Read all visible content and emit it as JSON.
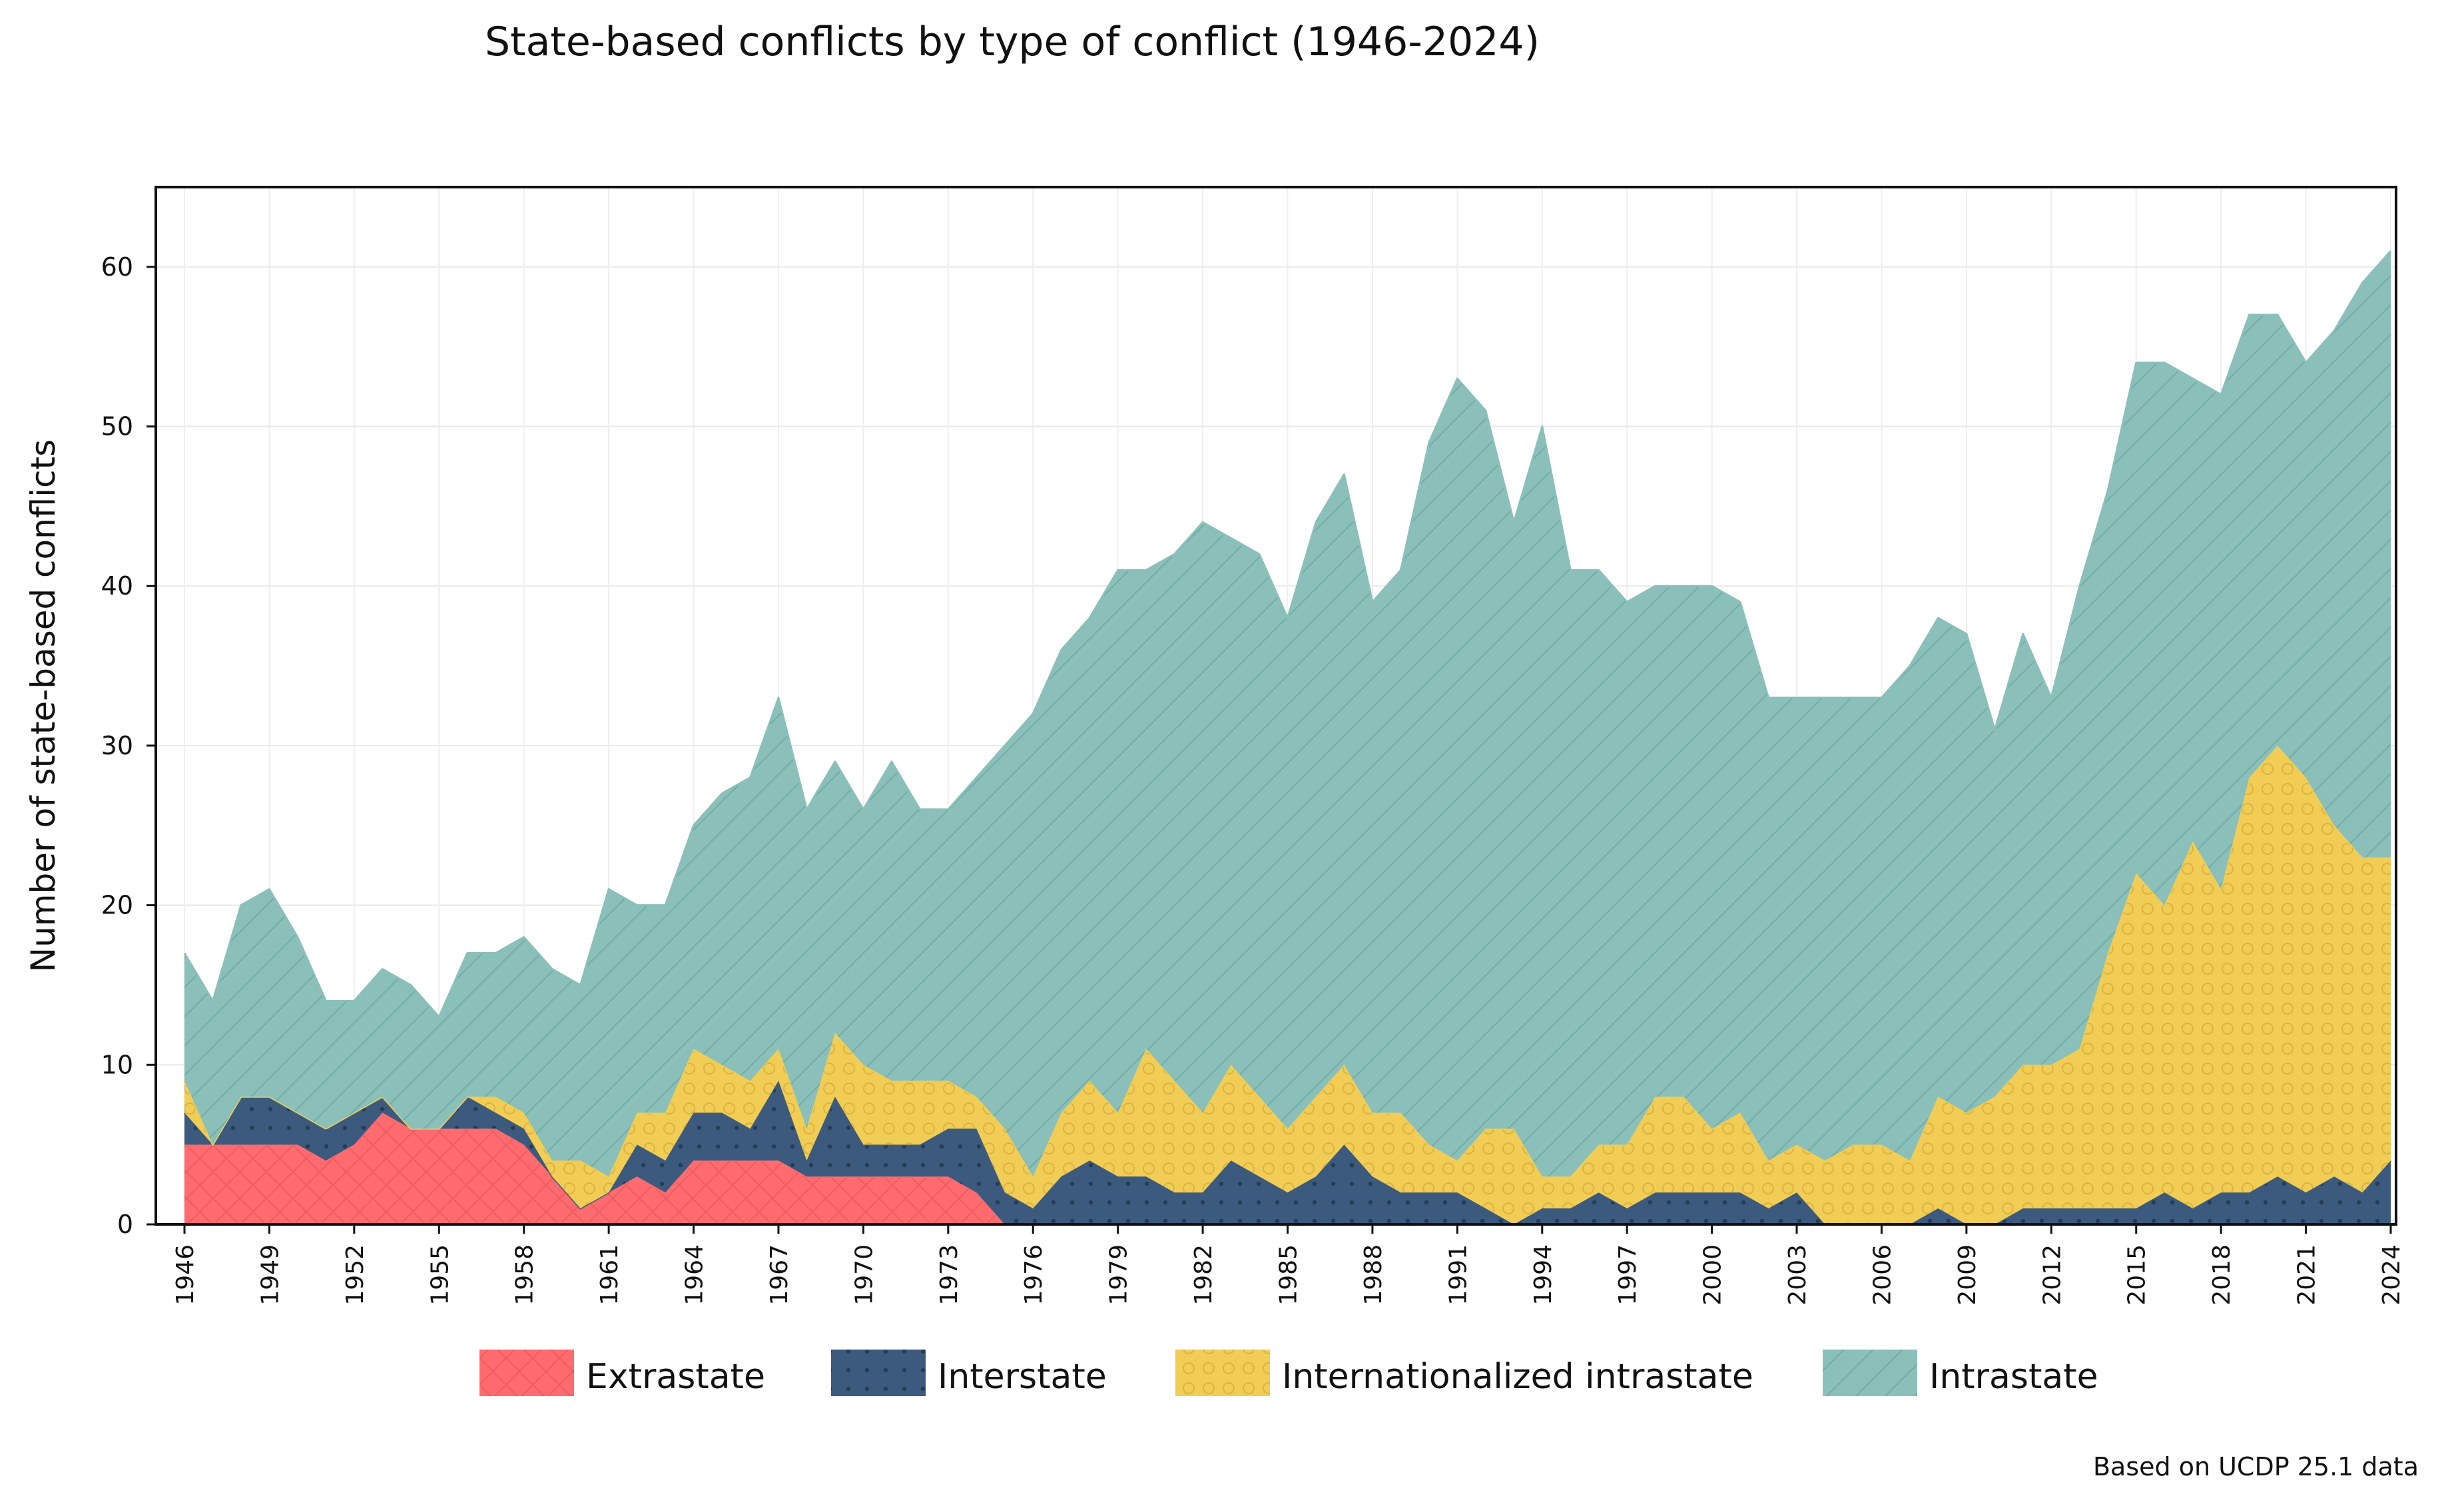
{
  "chart_data": {
    "type": "area",
    "stacked": true,
    "title": "State-based conflicts by type of conflict (1946-2024)",
    "xlabel": "",
    "ylabel": "Number of state-based conflicts",
    "note": "Based on UCDP 25.1 data",
    "xlim": [
      1946,
      2024
    ],
    "ylim": [
      0,
      65
    ],
    "yticks": [
      0,
      10,
      20,
      30,
      40,
      50,
      60
    ],
    "xticks": [
      1946,
      1949,
      1952,
      1955,
      1958,
      1961,
      1964,
      1967,
      1970,
      1973,
      1976,
      1979,
      1982,
      1985,
      1988,
      1991,
      1994,
      1997,
      2000,
      2003,
      2006,
      2009,
      2012,
      2015,
      2018,
      2021,
      2024
    ],
    "grid": true,
    "legend_position": "bottom",
    "x": [
      1946,
      1947,
      1948,
      1949,
      1950,
      1951,
      1952,
      1953,
      1954,
      1955,
      1956,
      1957,
      1958,
      1959,
      1960,
      1961,
      1962,
      1963,
      1964,
      1965,
      1966,
      1967,
      1968,
      1969,
      1970,
      1971,
      1972,
      1973,
      1974,
      1975,
      1976,
      1977,
      1978,
      1979,
      1980,
      1981,
      1982,
      1983,
      1984,
      1985,
      1986,
      1987,
      1988,
      1989,
      1990,
      1991,
      1992,
      1993,
      1994,
      1995,
      1996,
      1997,
      1998,
      1999,
      2000,
      2001,
      2002,
      2003,
      2004,
      2005,
      2006,
      2007,
      2008,
      2009,
      2010,
      2011,
      2012,
      2013,
      2014,
      2015,
      2016,
      2017,
      2018,
      2019,
      2020,
      2021,
      2022,
      2023,
      2024
    ],
    "series": [
      {
        "name": "Extrastate",
        "color": "#ff6b6e",
        "pattern": "crosshatch",
        "values": [
          5,
          5,
          5,
          5,
          5,
          4,
          5,
          7,
          6,
          6,
          6,
          6,
          5,
          3,
          1,
          2,
          3,
          2,
          4,
          4,
          4,
          4,
          3,
          3,
          3,
          3,
          3,
          3,
          2,
          0,
          0,
          0,
          0,
          0,
          0,
          0,
          0,
          0,
          0,
          0,
          0,
          0,
          0,
          0,
          0,
          0,
          0,
          0,
          0,
          0,
          0,
          0,
          0,
          0,
          0,
          0,
          0,
          0,
          0,
          0,
          0,
          0,
          0,
          0,
          0,
          0,
          0,
          0,
          0,
          0,
          0,
          0,
          0,
          0,
          0,
          0,
          0,
          0,
          0
        ]
      },
      {
        "name": "Interstate",
        "color": "#3c5a7d",
        "pattern": "dots",
        "values": [
          2,
          0,
          3,
          3,
          2,
          2,
          2,
          1,
          0,
          0,
          2,
          1,
          1,
          0,
          0,
          0,
          2,
          2,
          3,
          3,
          2,
          5,
          1,
          5,
          2,
          2,
          2,
          3,
          4,
          2,
          1,
          3,
          4,
          3,
          3,
          2,
          2,
          4,
          3,
          2,
          3,
          5,
          3,
          2,
          2,
          2,
          1,
          0,
          1,
          1,
          2,
          1,
          2,
          2,
          2,
          2,
          1,
          2,
          0,
          0,
          0,
          0,
          1,
          0,
          0,
          1,
          1,
          1,
          1,
          1,
          2,
          1,
          2,
          2,
          3,
          2,
          3,
          2,
          4
        ]
      },
      {
        "name": "Internationalized intrastate",
        "color": "#f2cd55",
        "pattern": "circles",
        "values": [
          2,
          0,
          0,
          0,
          0,
          0,
          0,
          0,
          0,
          0,
          0,
          1,
          1,
          1,
          3,
          1,
          2,
          3,
          4,
          3,
          3,
          2,
          2,
          4,
          5,
          4,
          4,
          3,
          2,
          4,
          2,
          4,
          5,
          4,
          8,
          7,
          5,
          6,
          5,
          4,
          5,
          5,
          4,
          5,
          3,
          2,
          5,
          6,
          2,
          2,
          3,
          4,
          6,
          6,
          4,
          5,
          3,
          3,
          4,
          5,
          5,
          4,
          7,
          7,
          8,
          9,
          9,
          10,
          16,
          21,
          18,
          23,
          19,
          26,
          27,
          26,
          22,
          21,
          19
        ]
      },
      {
        "name": "Intrastate",
        "color": "#8ac0b9",
        "pattern": "diagonal",
        "values": [
          8,
          9,
          12,
          13,
          11,
          8,
          7,
          8,
          9,
          7,
          9,
          9,
          11,
          12,
          11,
          18,
          13,
          13,
          14,
          17,
          19,
          22,
          20,
          17,
          16,
          20,
          17,
          17,
          20,
          24,
          29,
          29,
          29,
          34,
          30,
          33,
          37,
          33,
          34,
          32,
          36,
          37,
          32,
          34,
          44,
          49,
          45,
          38,
          47,
          38,
          36,
          34,
          32,
          32,
          34,
          32,
          29,
          28,
          29,
          28,
          28,
          31,
          30,
          30,
          23,
          27,
          23,
          29,
          29,
          32,
          34,
          29,
          31,
          29,
          27,
          26,
          31,
          36,
          38
        ]
      }
    ]
  }
}
